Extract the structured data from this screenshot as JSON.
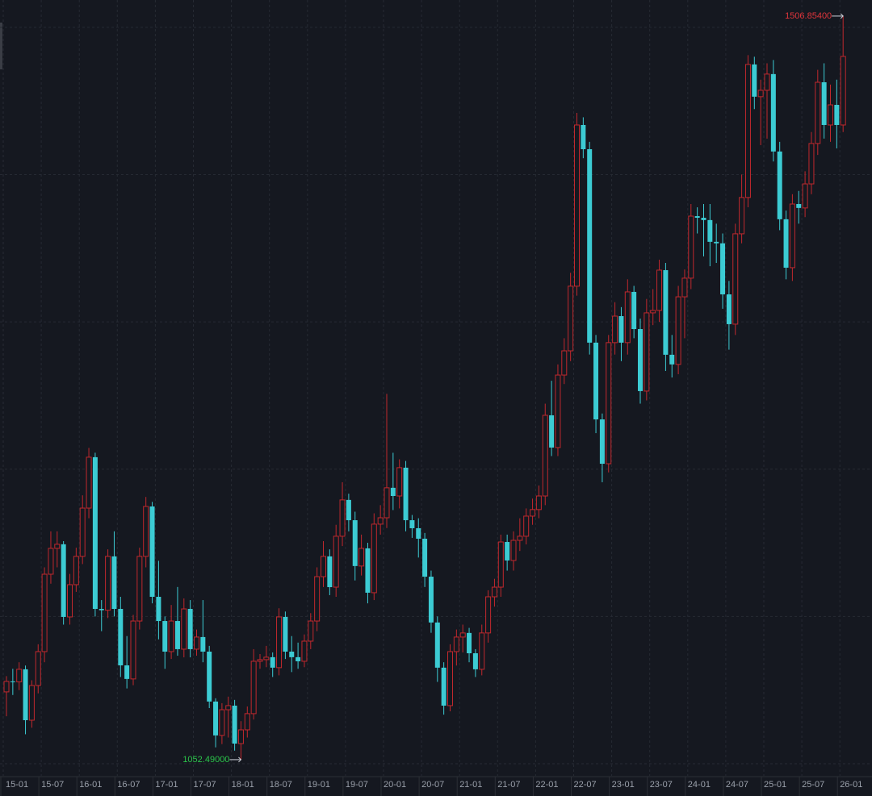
{
  "chart_data": {
    "type": "candlestick",
    "up_color": "#c0282d",
    "down_color": "#3ccbd3",
    "ylim": [
      1042.6,
      1514.7
    ],
    "ygrid": [
      1050,
      1140,
      1230,
      1320,
      1410,
      1500
    ],
    "categories": [
      "15-01",
      null,
      null,
      null,
      null,
      null,
      "15-07",
      null,
      null,
      null,
      null,
      null,
      "16-01",
      null,
      null,
      null,
      null,
      null,
      "16-07",
      null,
      null,
      null,
      null,
      null,
      "17-01",
      null,
      null,
      null,
      null,
      null,
      "17-07",
      null,
      null,
      null,
      null,
      null,
      "18-01",
      null,
      null,
      null,
      null,
      null,
      "18-07",
      null,
      null,
      null,
      null,
      null,
      "19-01",
      null,
      null,
      null,
      null,
      null,
      "19-07",
      null,
      null,
      null,
      null,
      null,
      "20-01",
      null,
      null,
      null,
      null,
      null,
      "20-07",
      null,
      null,
      null,
      null,
      null,
      "21-01",
      null,
      null,
      null,
      null,
      null,
      "21-07",
      null,
      null,
      null,
      null,
      null,
      "22-01",
      null,
      null,
      null,
      null,
      null,
      "22-07",
      null,
      null,
      null,
      null,
      null,
      "23-01",
      null,
      null,
      null,
      null,
      null,
      "23-07",
      null,
      null,
      null,
      null,
      null,
      "24-01",
      null,
      null,
      null,
      null,
      null,
      "24-07",
      null,
      null,
      null,
      null,
      null,
      "25-01",
      null,
      null,
      null,
      null,
      null,
      "25-07",
      null,
      null,
      null,
      null,
      null,
      "26-01"
    ],
    "ohlc": [
      [
        1093.9,
        1103.5,
        1079.0,
        1100.3
      ],
      [
        1100.3,
        1108.0,
        1092.0,
        1100.0
      ],
      [
        1100.0,
        1112.0,
        1095.0,
        1107.7
      ],
      [
        1107.7,
        1110.0,
        1068.0,
        1076.6
      ],
      [
        1076.6,
        1101.0,
        1072.0,
        1097.8
      ],
      [
        1097.8,
        1123.0,
        1093.0,
        1118.5
      ],
      [
        1118.5,
        1170.0,
        1112.0,
        1165.8
      ],
      [
        1165.8,
        1192.0,
        1160.0,
        1181.6
      ],
      [
        1181.6,
        1192.0,
        1170.0,
        1184.1
      ],
      [
        1184.1,
        1186.0,
        1135.0,
        1139.7
      ],
      [
        1139.7,
        1166.0,
        1135.0,
        1159.4
      ],
      [
        1159.4,
        1182.0,
        1155.0,
        1176.7
      ],
      [
        1176.7,
        1214.0,
        1172.0,
        1206.2
      ],
      [
        1206.2,
        1243.0,
        1200.0,
        1237.3
      ],
      [
        1237.3,
        1240.0,
        1140.0,
        1144.6
      ],
      [
        1144.6,
        1150.0,
        1131.0,
        1143.8
      ],
      [
        1143.8,
        1181.0,
        1139.0,
        1176.7
      ],
      [
        1176.7,
        1192.0,
        1140.0,
        1144.6
      ],
      [
        1144.6,
        1152.0,
        1103.0,
        1110.1
      ],
      [
        1110.1,
        1128.0,
        1096.0,
        1101.8
      ],
      [
        1101.8,
        1141.0,
        1098.0,
        1137.2
      ],
      [
        1137.2,
        1182.0,
        1132.0,
        1176.7
      ],
      [
        1176.7,
        1213.0,
        1170.0,
        1207.2
      ],
      [
        1207.2,
        1210.0,
        1148.0,
        1152.0
      ],
      [
        1152.0,
        1174.0,
        1126.0,
        1137.2
      ],
      [
        1137.2,
        1140.0,
        1108.0,
        1118.5
      ],
      [
        1118.5,
        1147.0,
        1114.0,
        1137.2
      ],
      [
        1137.2,
        1158.0,
        1116.0,
        1120.0
      ],
      [
        1120.0,
        1151.0,
        1115.0,
        1144.6
      ],
      [
        1144.6,
        1150.0,
        1115.0,
        1120.0
      ],
      [
        1120.0,
        1132.0,
        1116.0,
        1127.4
      ],
      [
        1127.4,
        1150.0,
        1112.0,
        1118.5
      ],
      [
        1118.5,
        1122.0,
        1084.0,
        1088.0
      ],
      [
        1088.0,
        1090.0,
        1060.0,
        1067.3
      ],
      [
        1067.3,
        1087.0,
        1062.0,
        1083.0
      ],
      [
        1083.0,
        1091.0,
        1066.0,
        1085.5
      ],
      [
        1085.5,
        1089.0,
        1058.0,
        1062.3
      ],
      [
        1062.3,
        1076.0,
        1052.49,
        1070.7
      ],
      [
        1070.7,
        1085.0,
        1066.0,
        1080.6
      ],
      [
        1080.6,
        1120.0,
        1077.0,
        1112.6
      ],
      [
        1112.6,
        1117.0,
        1108.0,
        1113.6
      ],
      [
        1113.6,
        1122.0,
        1109.0,
        1115.1
      ],
      [
        1115.1,
        1118.0,
        1103.0,
        1108.7
      ],
      [
        1108.7,
        1145.0,
        1104.0,
        1139.7
      ],
      [
        1139.7,
        1143.0,
        1114.0,
        1118.5
      ],
      [
        1118.5,
        1128.0,
        1106.0,
        1115.1
      ],
      [
        1115.1,
        1124.0,
        1108.0,
        1112.6
      ],
      [
        1112.6,
        1129.0,
        1109.0,
        1124.9
      ],
      [
        1124.9,
        1142.0,
        1120.0,
        1137.2
      ],
      [
        1137.2,
        1170.0,
        1131.0,
        1164.3
      ],
      [
        1164.3,
        1186.0,
        1158.0,
        1176.7
      ],
      [
        1176.7,
        1181.0,
        1153.0,
        1157.9
      ],
      [
        1157.9,
        1196.0,
        1152.0,
        1189.0
      ],
      [
        1189.0,
        1222.0,
        1183.0,
        1211.2
      ],
      [
        1211.2,
        1215.0,
        1192.0,
        1198.8
      ],
      [
        1198.8,
        1204.0,
        1162.0,
        1170.8
      ],
      [
        1170.8,
        1190.0,
        1165.0,
        1181.6
      ],
      [
        1181.6,
        1185.0,
        1148.0,
        1154.5
      ],
      [
        1154.5,
        1203.0,
        1150.0,
        1196.4
      ],
      [
        1196.4,
        1208.0,
        1190.0,
        1200.3
      ],
      [
        1200.3,
        1276.0,
        1194.0,
        1218.6
      ],
      [
        1218.6,
        1240.0,
        1205.0,
        1213.6
      ],
      [
        1213.6,
        1236.0,
        1206.0,
        1230.9
      ],
      [
        1230.9,
        1235.0,
        1192.0,
        1198.8
      ],
      [
        1198.8,
        1202.0,
        1188.0,
        1193.9
      ],
      [
        1193.9,
        1200.0,
        1176.0,
        1187.5
      ],
      [
        1187.5,
        1191.0,
        1158.0,
        1164.3
      ],
      [
        1164.3,
        1168.0,
        1130.0,
        1136.3
      ],
      [
        1136.3,
        1140.0,
        1100.0,
        1108.7
      ],
      [
        1108.7,
        1112.0,
        1080.0,
        1085.5
      ],
      [
        1085.5,
        1123.0,
        1082.0,
        1118.5
      ],
      [
        1118.5,
        1132.0,
        1110.0,
        1127.4
      ],
      [
        1127.4,
        1135.0,
        1118.0,
        1129.9
      ],
      [
        1129.9,
        1133.0,
        1112.0,
        1117.5
      ],
      [
        1117.5,
        1120.0,
        1103.0,
        1107.7
      ],
      [
        1107.7,
        1135.0,
        1104.0,
        1129.9
      ],
      [
        1129.9,
        1156.0,
        1124.0,
        1152.0
      ],
      [
        1152.0,
        1163.0,
        1146.0,
        1157.9
      ],
      [
        1157.9,
        1190.0,
        1152.0,
        1185.5
      ],
      [
        1185.5,
        1190.0,
        1168.0,
        1174.2
      ],
      [
        1174.2,
        1192.0,
        1168.0,
        1186.5
      ],
      [
        1186.5,
        1200.0,
        1180.0,
        1189.0
      ],
      [
        1189.0,
        1206.0,
        1184.0,
        1201.3
      ],
      [
        1201.3,
        1212.0,
        1196.0,
        1205.3
      ],
      [
        1205.3,
        1220.0,
        1200.0,
        1213.6
      ],
      [
        1213.6,
        1270.0,
        1208.0,
        1262.9
      ],
      [
        1262.9,
        1284.0,
        1238.0,
        1243.2
      ],
      [
        1243.2,
        1294.0,
        1238.0,
        1287.5
      ],
      [
        1287.5,
        1310.0,
        1282.0,
        1302.3
      ],
      [
        1302.3,
        1350.0,
        1296.0,
        1341.8
      ],
      [
        1341.8,
        1447.7,
        1336.0,
        1440.3
      ],
      [
        1440.3,
        1445.0,
        1420.0,
        1425.5
      ],
      [
        1425.5,
        1430.0,
        1300.0,
        1307.3
      ],
      [
        1307.3,
        1312.0,
        1252.0,
        1260.4
      ],
      [
        1260.4,
        1264.0,
        1222.0,
        1233.3
      ],
      [
        1233.3,
        1312.0,
        1228.0,
        1307.3
      ],
      [
        1307.3,
        1332.0,
        1300.0,
        1323.5
      ],
      [
        1323.5,
        1329.0,
        1296.0,
        1307.3
      ],
      [
        1307.3,
        1346.0,
        1300.0,
        1338.3
      ],
      [
        1338.3,
        1342.0,
        1310.0,
        1315.6
      ],
      [
        1315.6,
        1322.0,
        1270.0,
        1277.7
      ],
      [
        1277.7,
        1334.0,
        1272.0,
        1325.5
      ],
      [
        1325.5,
        1340.0,
        1318.0,
        1327.0
      ],
      [
        1327.0,
        1358.0,
        1320.0,
        1351.6
      ],
      [
        1351.6,
        1356.0,
        1290.0,
        1299.9
      ],
      [
        1299.9,
        1312.0,
        1286.0,
        1294.0
      ],
      [
        1294.0,
        1342.0,
        1288.0,
        1335.3
      ],
      [
        1335.3,
        1352.0,
        1310.0,
        1346.7
      ],
      [
        1346.7,
        1392.0,
        1340.0,
        1384.6
      ],
      [
        1384.6,
        1390.0,
        1374.0,
        1383.6
      ],
      [
        1383.6,
        1392.0,
        1360.0,
        1382.2
      ],
      [
        1382.2,
        1392.0,
        1354.0,
        1368.9
      ],
      [
        1368.9,
        1380.0,
        1356.0,
        1368.0
      ],
      [
        1368.0,
        1374.0,
        1328.0,
        1336.8
      ],
      [
        1336.8,
        1345.0,
        1303.0,
        1318.6
      ],
      [
        1318.6,
        1380.0,
        1312.0,
        1373.8
      ],
      [
        1373.8,
        1410.0,
        1368.0,
        1396.0
      ],
      [
        1396.0,
        1483.0,
        1390.0,
        1477.3
      ],
      [
        1477.3,
        1482.0,
        1450.0,
        1457.6
      ],
      [
        1457.6,
        1468.0,
        1428.0,
        1461.5
      ],
      [
        1461.5,
        1478.0,
        1432.0,
        1471.4
      ],
      [
        1471.4,
        1480.0,
        1418.0,
        1424.1
      ],
      [
        1424.1,
        1430.0,
        1376.0,
        1382.7
      ],
      [
        1382.7,
        1388.0,
        1346.0,
        1353.1
      ],
      [
        1353.1,
        1398.0,
        1345.0,
        1392.0
      ],
      [
        1392.0,
        1400.0,
        1380.0,
        1389.6
      ],
      [
        1389.6,
        1412.0,
        1384.0,
        1404.3
      ],
      [
        1404.3,
        1436.0,
        1398.0,
        1429.0
      ],
      [
        1429.0,
        1474.0,
        1422.0,
        1466.4
      ],
      [
        1466.4,
        1478.0,
        1432.0,
        1440.3
      ],
      [
        1440.3,
        1465.0,
        1430.0,
        1452.6
      ],
      [
        1452.6,
        1468.0,
        1426.0,
        1440.3
      ],
      [
        1440.3,
        1506.854,
        1436.0,
        1482.2
      ]
    ],
    "annotations": [
      {
        "value": 1506.854,
        "label": "1506.85400",
        "color": "#e0353b"
      },
      {
        "value": 1052.49,
        "label": "1052.49000",
        "color": "#2bc44a"
      }
    ]
  }
}
